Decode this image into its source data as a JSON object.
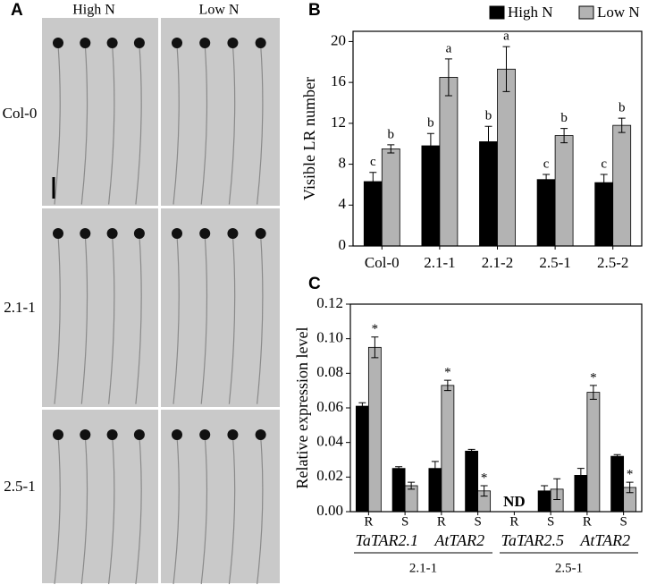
{
  "panel_a": {
    "label": "A",
    "columns": [
      "High N",
      "Low N"
    ],
    "rows": [
      "Col-0",
      "2.1-1",
      "2.5-1"
    ]
  },
  "chart_data": [
    {
      "type": "bar",
      "panel": "B",
      "ylabel": "Visible LR number",
      "categories": [
        "Col-0",
        "2.1-1",
        "2.1-2",
        "2.5-1",
        "2.5-2"
      ],
      "series": [
        {
          "name": "High N",
          "color": "#000000",
          "values": [
            6.3,
            9.8,
            10.2,
            6.5,
            6.2
          ],
          "errors": [
            0.9,
            1.2,
            1.5,
            0.5,
            0.8
          ],
          "letters": [
            "c",
            "b",
            "b",
            "c",
            "c"
          ]
        },
        {
          "name": "Low N",
          "color": "#b3b3b3",
          "values": [
            9.5,
            16.5,
            17.3,
            10.8,
            11.8
          ],
          "errors": [
            0.4,
            1.8,
            2.2,
            0.7,
            0.7
          ],
          "letters": [
            "b",
            "a",
            "a",
            "b",
            "b"
          ]
        }
      ],
      "ylim": [
        0,
        21
      ],
      "yticks": [
        0,
        4,
        8,
        12,
        16,
        20
      ],
      "legend": "top"
    },
    {
      "type": "bar",
      "panel": "C",
      "ylabel": "Relative expression level",
      "categories": [
        "R",
        "S",
        "R",
        "S",
        "R",
        "S",
        "R",
        "S"
      ],
      "series": [
        {
          "color": "#000000",
          "values": [
            0.061,
            0.025,
            0.025,
            0.035,
            null,
            0.012,
            0.021,
            0.032
          ],
          "errors": [
            0.002,
            0.001,
            0.004,
            0.001,
            null,
            0.003,
            0.004,
            0.001
          ],
          "value_labels": [
            null,
            null,
            null,
            null,
            "ND",
            null,
            null,
            null
          ]
        },
        {
          "color": "#b3b3b3",
          "values": [
            0.095,
            0.015,
            0.073,
            0.012,
            null,
            0.013,
            0.069,
            0.014
          ],
          "errors": [
            0.006,
            0.002,
            0.003,
            0.003,
            null,
            0.006,
            0.004,
            0.003
          ],
          "stars": [
            "*",
            null,
            "*",
            "*",
            null,
            null,
            "*",
            "*"
          ]
        }
      ],
      "genes": [
        "TaTAR2.1",
        "AtTAR2",
        "TaTAR2.5",
        "AtTAR2"
      ],
      "lines": [
        "2.1-1",
        "2.5-1"
      ],
      "ylim": [
        0,
        0.12
      ],
      "yticks": [
        {
          "value": 0,
          "label": "0.00"
        },
        {
          "value": 0.02,
          "label": "0.02"
        },
        {
          "value": 0.04,
          "label": "0.04"
        },
        {
          "value": 0.06,
          "label": "0.06"
        },
        {
          "value": 0.08,
          "label": "0.08"
        },
        {
          "value": 0.1,
          "label": "0.10"
        },
        {
          "value": 0.12,
          "label": "0.12"
        }
      ]
    }
  ]
}
